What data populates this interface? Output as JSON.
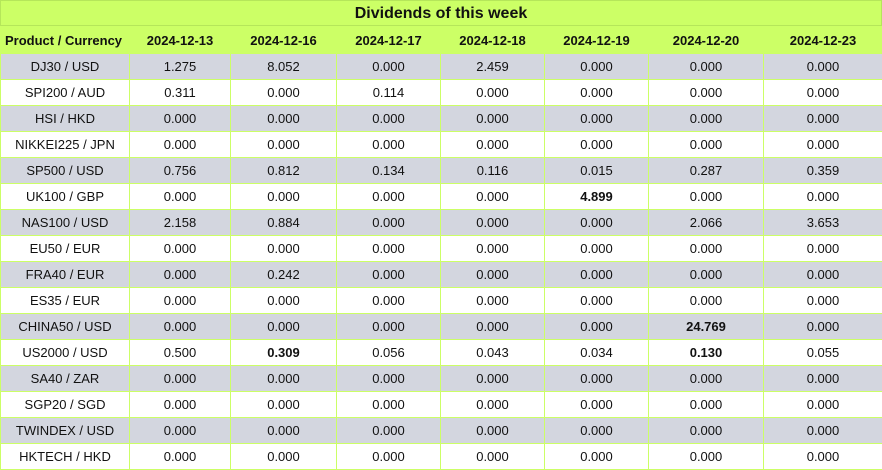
{
  "title": "Dividends of this week",
  "header": {
    "product_label": "Product / Currency",
    "dates": [
      "2024-12-13",
      "2024-12-16",
      "2024-12-17",
      "2024-12-18",
      "2024-12-19",
      "2024-12-20",
      "2024-12-23"
    ]
  },
  "colors": {
    "header_bg": "#ccff66",
    "row_alt_bg": "#d3d6df",
    "row_bg": "#ffffff"
  },
  "rows": [
    {
      "product": "DJ30 / USD",
      "values": [
        "1.275",
        "8.052",
        "0.000",
        "2.459",
        "0.000",
        "0.000",
        "0.000"
      ],
      "bold": []
    },
    {
      "product": "SPI200 / AUD",
      "values": [
        "0.311",
        "0.000",
        "0.114",
        "0.000",
        "0.000",
        "0.000",
        "0.000"
      ],
      "bold": []
    },
    {
      "product": "HSI / HKD",
      "values": [
        "0.000",
        "0.000",
        "0.000",
        "0.000",
        "0.000",
        "0.000",
        "0.000"
      ],
      "bold": []
    },
    {
      "product": "NIKKEI225 / JPN",
      "values": [
        "0.000",
        "0.000",
        "0.000",
        "0.000",
        "0.000",
        "0.000",
        "0.000"
      ],
      "bold": []
    },
    {
      "product": "SP500 / USD",
      "values": [
        "0.756",
        "0.812",
        "0.134",
        "0.116",
        "0.015",
        "0.287",
        "0.359"
      ],
      "bold": []
    },
    {
      "product": "UK100 / GBP",
      "values": [
        "0.000",
        "0.000",
        "0.000",
        "0.000",
        "4.899",
        "0.000",
        "0.000"
      ],
      "bold": [
        4
      ]
    },
    {
      "product": "NAS100 / USD",
      "values": [
        "2.158",
        "0.884",
        "0.000",
        "0.000",
        "0.000",
        "2.066",
        "3.653"
      ],
      "bold": []
    },
    {
      "product": "EU50 / EUR",
      "values": [
        "0.000",
        "0.000",
        "0.000",
        "0.000",
        "0.000",
        "0.000",
        "0.000"
      ],
      "bold": []
    },
    {
      "product": "FRA40 / EUR",
      "values": [
        "0.000",
        "0.242",
        "0.000",
        "0.000",
        "0.000",
        "0.000",
        "0.000"
      ],
      "bold": []
    },
    {
      "product": "ES35 / EUR",
      "values": [
        "0.000",
        "0.000",
        "0.000",
        "0.000",
        "0.000",
        "0.000",
        "0.000"
      ],
      "bold": []
    },
    {
      "product": "CHINA50 / USD",
      "values": [
        "0.000",
        "0.000",
        "0.000",
        "0.000",
        "0.000",
        "24.769",
        "0.000"
      ],
      "bold": [
        5
      ]
    },
    {
      "product": "US2000 / USD",
      "values": [
        "0.500",
        "0.309",
        "0.056",
        "0.043",
        "0.034",
        "0.130",
        "0.055"
      ],
      "bold": [
        1,
        5
      ]
    },
    {
      "product": "SA40 / ZAR",
      "values": [
        "0.000",
        "0.000",
        "0.000",
        "0.000",
        "0.000",
        "0.000",
        "0.000"
      ],
      "bold": []
    },
    {
      "product": "SGP20 / SGD",
      "values": [
        "0.000",
        "0.000",
        "0.000",
        "0.000",
        "0.000",
        "0.000",
        "0.000"
      ],
      "bold": []
    },
    {
      "product": "TWINDEX / USD",
      "values": [
        "0.000",
        "0.000",
        "0.000",
        "0.000",
        "0.000",
        "0.000",
        "0.000"
      ],
      "bold": []
    },
    {
      "product": "HKTECH / HKD",
      "values": [
        "0.000",
        "0.000",
        "0.000",
        "0.000",
        "0.000",
        "0.000",
        "0.000"
      ],
      "bold": []
    }
  ]
}
